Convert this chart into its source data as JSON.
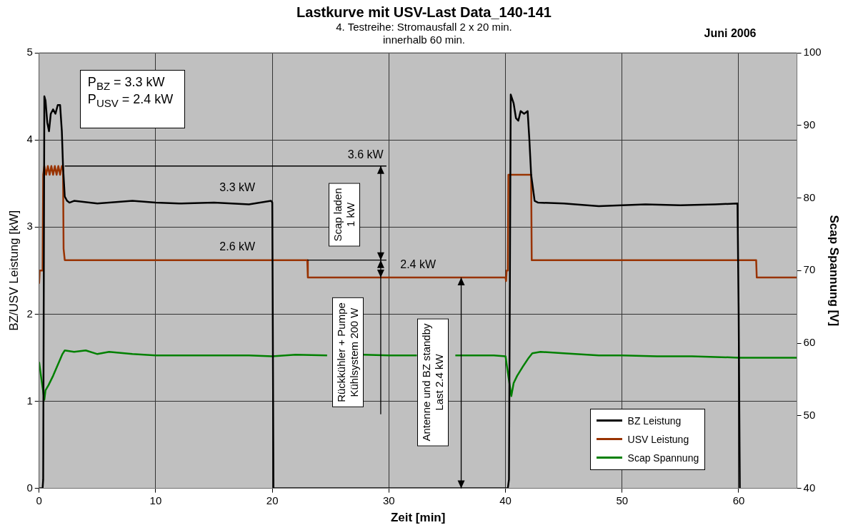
{
  "chart_data": {
    "type": "line",
    "title": "Lastkurve mit USV-Last Data_140-141",
    "subtitle": "4. Testreihe: Stromausfall 2 x 20 min.\ninnerhalb 60 min.",
    "xlabel": "Zeit [min]",
    "ylabel": "BZ/USV Leistung [kW]",
    "y2label": "Scap Spannung [V]",
    "xlim": [
      0,
      65
    ],
    "xticks": [
      0,
      10,
      20,
      30,
      40,
      50,
      60
    ],
    "ylim": [
      0,
      5
    ],
    "yticks": [
      0,
      1,
      2,
      3,
      4,
      5
    ],
    "y2lim": [
      40,
      100
    ],
    "y2ticks": [
      40,
      50,
      60,
      70,
      80,
      90,
      100
    ],
    "grid": true,
    "legend": "bottom right",
    "marker": "none",
    "line_style": "solid",
    "series": [
      {
        "name": "BZ Leistung",
        "color": "#000000",
        "x": [
          0,
          0.3,
          0.35,
          0.45,
          0.55,
          0.7,
          0.85,
          1.0,
          1.2,
          1.4,
          1.6,
          1.8,
          1.95,
          2.05,
          2.2,
          2.4,
          2.6,
          3.0,
          5,
          8,
          10,
          12,
          15,
          18,
          19.9,
          20,
          20.1,
          30,
          40.2,
          40.3,
          40.45,
          40.7,
          40.9,
          41.1,
          41.3,
          41.6,
          41.9,
          42.05,
          42.2,
          42.5,
          42.8,
          45,
          48,
          50,
          52,
          55,
          58,
          59.9,
          60.0,
          60.1
        ],
        "values": [
          0,
          0,
          0.1,
          4.5,
          4.45,
          4.2,
          4.1,
          4.3,
          4.35,
          4.3,
          4.4,
          4.4,
          4.1,
          3.7,
          3.35,
          3.3,
          3.28,
          3.3,
          3.27,
          3.3,
          3.28,
          3.27,
          3.28,
          3.26,
          3.3,
          3.28,
          0,
          0,
          0,
          0.1,
          4.52,
          4.42,
          4.25,
          4.22,
          4.33,
          4.3,
          4.33,
          4.0,
          3.6,
          3.3,
          3.28,
          3.27,
          3.24,
          3.25,
          3.26,
          3.25,
          3.26,
          3.27,
          2.0,
          0
        ]
      },
      {
        "name": "USV Leistung",
        "color": "#993300",
        "x": [
          0,
          0.05,
          0.1,
          0.3,
          0.35,
          0.45,
          0.6,
          0.75,
          0.9,
          1.05,
          1.2,
          1.35,
          1.5,
          1.65,
          1.8,
          1.95,
          2.05,
          2.1,
          2.15,
          2.2,
          23,
          23.05,
          40,
          40.05,
          40.1,
          40.2,
          40.25,
          42.2,
          42.25,
          61.5,
          61.55,
          65
        ],
        "values": [
          2.35,
          2.5,
          2.5,
          2.5,
          3.6,
          3.7,
          3.6,
          3.7,
          3.6,
          3.7,
          3.6,
          3.7,
          3.6,
          3.7,
          3.6,
          3.7,
          3.7,
          2.75,
          2.75,
          2.62,
          2.62,
          2.42,
          2.42,
          2.38,
          2.5,
          2.5,
          3.6,
          3.6,
          2.62,
          2.62,
          2.42,
          2.42
        ]
      },
      {
        "name": "Scap Spannung",
        "color": "#008000",
        "axis": "y2",
        "x": [
          0,
          0.2,
          0.45,
          0.55,
          0.8,
          1.2,
          1.6,
          2.0,
          2.2,
          3,
          4,
          5,
          6,
          8,
          10,
          12,
          15,
          18,
          20,
          22,
          24.7,
          26,
          27.8,
          30,
          32.4,
          33.5,
          35.7,
          36,
          39,
          40,
          40.2,
          40.5,
          40.7,
          41,
          41.5,
          42,
          42.3,
          43,
          45,
          48,
          50,
          53,
          56,
          58,
          60,
          62,
          65
        ],
        "values": [
          57.4,
          55,
          52.2,
          53.5,
          54.2,
          55.5,
          57,
          58.5,
          59,
          58.8,
          59,
          58.5,
          58.8,
          58.5,
          58.3,
          58.3,
          58.3,
          58.3,
          58.2,
          58.4,
          58.3,
          null,
          58.4,
          58.3,
          58.3,
          null,
          58.3,
          58.3,
          58.3,
          58.2,
          56,
          52.7,
          54.5,
          55.5,
          56.8,
          58,
          58.6,
          58.8,
          58.6,
          58.3,
          58.3,
          58.2,
          58.2,
          58.1,
          58,
          58,
          58
        ]
      }
    ],
    "annotations": [
      "Juni 2006",
      "P$_{BZ}$ = 3.3 kW",
      "P$_{USV}$ = 2.4 kW",
      "Scap laden\n1 kW",
      "Rückkühler + Pumpe\nKühlsystem 200 W",
      "Antenne und BZ standby\nLast 2.4 kW",
      "3.6 kW",
      "3.3 kW",
      "2.6 kW",
      {
        "text": "2.4 kW",
        "x": 32.5,
        "y": 2.42
      }
    ]
  }
}
